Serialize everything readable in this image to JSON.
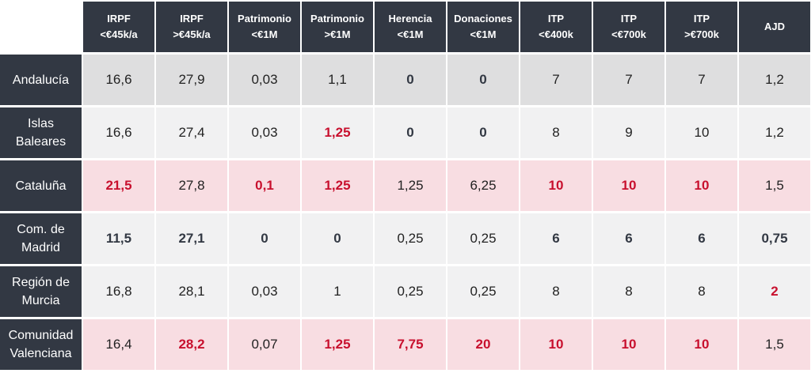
{
  "table": {
    "header": [
      [
        "IRPF",
        "<€45k/a"
      ],
      [
        "IRPF",
        ">€45k/a"
      ],
      [
        "Patrimonio",
        "<€1M"
      ],
      [
        "Patrimonio",
        ">€1M"
      ],
      [
        "Herencia",
        "<€1M"
      ],
      [
        "Donaciones",
        "<€1M"
      ],
      [
        "ITP",
        "<€400k"
      ],
      [
        "ITP",
        "<€700k"
      ],
      [
        "ITP",
        ">€700k"
      ],
      [
        "AJD"
      ]
    ],
    "rows": [
      {
        "label": [
          "Andalucía"
        ],
        "background": "#dededf",
        "cells": [
          "16,6",
          "27,9",
          "0,03",
          "1,1",
          "0",
          "0",
          "7",
          "7",
          "7",
          "1,2"
        ],
        "red": [],
        "bold": [
          4,
          5
        ]
      },
      {
        "label": [
          "Islas",
          "Baleares"
        ],
        "background": "#f1f1f2",
        "cells": [
          "16,6",
          "27,4",
          "0,03",
          "1,25",
          "0",
          "0",
          "8",
          "9",
          "10",
          "1,2"
        ],
        "red": [
          3
        ],
        "bold": [
          4,
          5
        ]
      },
      {
        "label": [
          "Cataluña"
        ],
        "background": "#f8dde2",
        "cells": [
          "21,5",
          "27,8",
          "0,1",
          "1,25",
          "1,25",
          "6,25",
          "10",
          "10",
          "10",
          "1,5"
        ],
        "red": [
          0,
          2,
          3,
          6,
          7,
          8
        ],
        "bold": []
      },
      {
        "label": [
          "Com. de",
          "Madrid"
        ],
        "background": "#f1f1f2",
        "cells": [
          "11,5",
          "27,1",
          "0",
          "0",
          "0,25",
          "0,25",
          "6",
          "6",
          "6",
          "0,75"
        ],
        "red": [],
        "bold": [
          0,
          1,
          2,
          3,
          6,
          7,
          8,
          9
        ]
      },
      {
        "label": [
          "Región de",
          "Murcia"
        ],
        "background": "#f1f1f2",
        "cells": [
          "16,8",
          "28,1",
          "0,03",
          "1",
          "0,25",
          "0,25",
          "8",
          "8",
          "8",
          "2"
        ],
        "red": [
          9
        ],
        "bold": []
      },
      {
        "label": [
          "Comunidad",
          "Valenciana"
        ],
        "background": "#f8dde2",
        "cells": [
          "16,4",
          "28,2",
          "0,07",
          "1,25",
          "7,75",
          "20",
          "10",
          "10",
          "10",
          "1,5"
        ],
        "red": [
          1,
          3,
          4,
          5,
          6,
          7,
          8
        ],
        "bold": []
      }
    ]
  }
}
